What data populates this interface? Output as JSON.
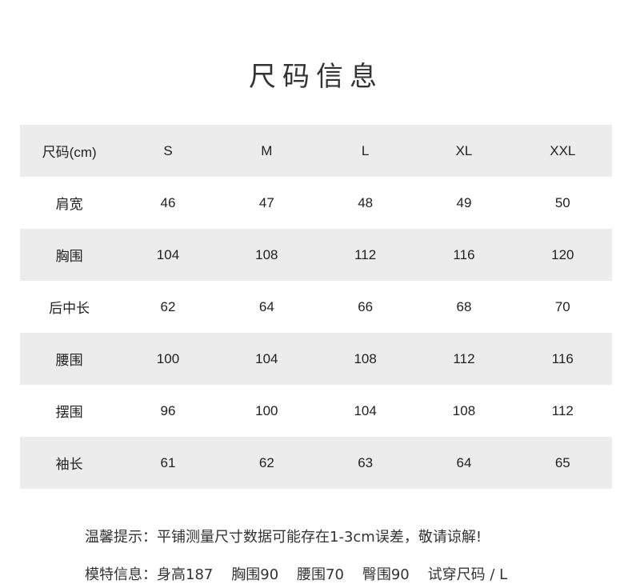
{
  "title": "尺码信息",
  "table": {
    "headers": [
      "尺码(cm)",
      "S",
      "M",
      "L",
      "XL",
      "XXL"
    ],
    "rows": [
      [
        "肩宽",
        "46",
        "47",
        "48",
        "49",
        "50"
      ],
      [
        "胸围",
        "104",
        "108",
        "112",
        "116",
        "120"
      ],
      [
        "后中长",
        "62",
        "64",
        "66",
        "68",
        "70"
      ],
      [
        "腰围",
        "100",
        "104",
        "108",
        "112",
        "116"
      ],
      [
        "摆围",
        "96",
        "100",
        "104",
        "108",
        "112"
      ],
      [
        "袖长",
        "61",
        "62",
        "63",
        "64",
        "65"
      ]
    ]
  },
  "notes": {
    "tip": "温馨提示：平铺测量尺寸数据可能存在1-3cm误差，敬请谅解!",
    "model": "模特信息：身高187    胸围90    腰围70    臀围90    试穿尺码 / L"
  },
  "colors": {
    "row_stripe": "#ececec",
    "text": "#333333"
  }
}
